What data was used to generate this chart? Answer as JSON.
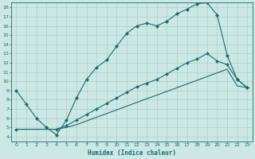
{
  "xlabel": "Humidex (Indice chaleur)",
  "bg_color": "#cce8e4",
  "grid_color": "#aacfcb",
  "line_color": "#1a6b6b",
  "text_color": "#1a6b6b",
  "xlim": [
    -0.5,
    23.5
  ],
  "ylim": [
    3.5,
    18.5
  ],
  "xticks": [
    0,
    1,
    2,
    3,
    4,
    5,
    6,
    7,
    8,
    9,
    10,
    11,
    12,
    13,
    14,
    15,
    16,
    17,
    18,
    19,
    20,
    21,
    22,
    23
  ],
  "yticks": [
    4,
    5,
    6,
    7,
    8,
    9,
    10,
    11,
    12,
    13,
    14,
    15,
    16,
    17,
    18
  ],
  "curve1_x": [
    0,
    1,
    2,
    3,
    4,
    5,
    6,
    7,
    8,
    9,
    10,
    11,
    12,
    13,
    14,
    15,
    16,
    17,
    18,
    19,
    20,
    21,
    22,
    23
  ],
  "curve1_y": [
    9.0,
    7.5,
    6.0,
    5.0,
    4.2,
    5.8,
    8.2,
    10.2,
    11.5,
    12.3,
    13.8,
    15.2,
    16.0,
    16.3,
    16.0,
    16.5,
    17.3,
    17.8,
    18.4,
    18.5,
    17.2,
    12.8,
    10.2,
    9.3
  ],
  "curve2_x": [
    0,
    4,
    5,
    6,
    7,
    8,
    9,
    10,
    11,
    12,
    13,
    14,
    15,
    16,
    17,
    18,
    19,
    20,
    21,
    22,
    23
  ],
  "curve2_y": [
    4.8,
    4.8,
    5.2,
    5.8,
    6.4,
    7.0,
    7.6,
    8.2,
    8.8,
    9.4,
    9.8,
    10.2,
    10.8,
    11.4,
    12.0,
    12.4,
    13.0,
    12.2,
    11.8,
    10.2,
    9.3
  ],
  "curve3_x": [
    0,
    4,
    5,
    6,
    7,
    8,
    9,
    10,
    11,
    12,
    13,
    14,
    15,
    16,
    17,
    18,
    19,
    20,
    21,
    22,
    23
  ],
  "curve3_y": [
    4.8,
    4.8,
    5.0,
    5.3,
    5.7,
    6.1,
    6.5,
    6.9,
    7.3,
    7.7,
    8.1,
    8.5,
    8.9,
    9.3,
    9.7,
    10.1,
    10.5,
    10.9,
    11.3,
    9.5,
    9.3
  ]
}
